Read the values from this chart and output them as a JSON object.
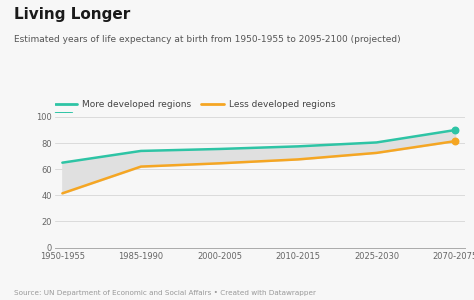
{
  "title": "Living Longer",
  "subtitle": "Estimated years of life expectancy at birth from 1950-1955 to 2095-2100 (projected)",
  "source": "Source: UN Department of Economic and Social Affairs • Created with Datawrapper",
  "x_labels": [
    "1950-1955",
    "1985-1990",
    "2000-2005",
    "2010-2015",
    "2025-2030",
    "2070-2075"
  ],
  "x_values": [
    0,
    1,
    2,
    3,
    4,
    5
  ],
  "more_developed": [
    65.0,
    74.0,
    75.5,
    77.5,
    80.5,
    90.0
  ],
  "less_developed": [
    41.5,
    62.0,
    64.5,
    67.5,
    72.5,
    81.5
  ],
  "more_color": "#2EC4A5",
  "less_color": "#F5A623",
  "fill_color": "#E0E0E0",
  "ylim": [
    0,
    100
  ],
  "yticks": [
    0,
    20,
    40,
    60,
    80,
    100
  ],
  "bg_color": "#F7F7F7",
  "title_color": "#1a1a1a",
  "subtitle_color": "#555555",
  "source_color": "#999999",
  "legend_more": "More developed regions",
  "legend_less": "Less developed regions"
}
